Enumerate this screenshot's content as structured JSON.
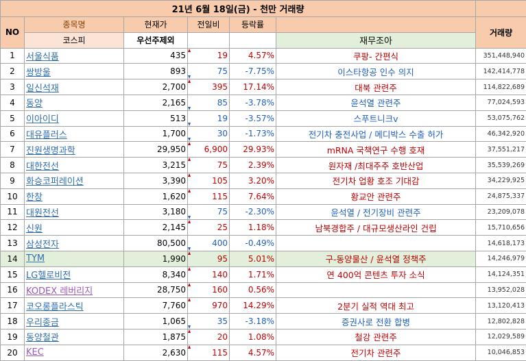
{
  "title": "21년 6월 18일(금) - 천만 거래량",
  "headers": {
    "no": "NO",
    "name": "종목명",
    "price": "현재가",
    "change": "전일비",
    "rate": "등락률",
    "volume": "거래량"
  },
  "subheaders": {
    "market": "코스피",
    "filter": "우선주제외",
    "note": "재무조아"
  },
  "rows": [
    {
      "no": "1",
      "name": "서울식품",
      "price": "435",
      "change": "19",
      "rate": "4.57%",
      "note": "쿠팡- 간편식",
      "volume": "351,448,940",
      "dir": "up"
    },
    {
      "no": "2",
      "name": "쌍방울",
      "price": "893",
      "change": "75",
      "rate": "-7.75%",
      "note": "이스타항공 인수 의지",
      "volume": "142,414,778",
      "dir": "down"
    },
    {
      "no": "3",
      "name": "일신석재",
      "price": "2,700",
      "change": "395",
      "rate": "17.14%",
      "note": "대북 관련주",
      "volume": "114,822,689",
      "dir": "up"
    },
    {
      "no": "4",
      "name": "동양",
      "price": "2,165",
      "change": "85",
      "rate": "-3.78%",
      "note": "윤석열 관련주",
      "volume": "77,024,593",
      "dir": "down"
    },
    {
      "no": "5",
      "name": "이아이디",
      "price": "513",
      "change": "19",
      "rate": "-3.57%",
      "note": "스푸트니크v",
      "volume": "53,075,762",
      "dir": "down"
    },
    {
      "no": "6",
      "name": "대유플러스",
      "price": "1,700",
      "change": "30",
      "rate": "-1.73%",
      "note": "전기차 충전사업 / 메디박스 수출 허가",
      "volume": "46,342,920",
      "dir": "down"
    },
    {
      "no": "7",
      "name": "진원생명과학",
      "price": "29,950",
      "change": "6,900",
      "rate": "29.93%",
      "note": "mRNA 국책연구 수행 호재",
      "volume": "37,551,217",
      "dir": "up"
    },
    {
      "no": "8",
      "name": "대한전선",
      "price": "3,215",
      "change": "75",
      "rate": "2.39%",
      "note": "원자재 /최대주주 호반산업",
      "volume": "35,539,269",
      "dir": "up"
    },
    {
      "no": "9",
      "name": "화승코퍼레이션",
      "price": "3,390",
      "change": "105",
      "rate": "3.20%",
      "note": "전기차 업황 호조 기대감",
      "volume": "34,229,925",
      "dir": "up"
    },
    {
      "no": "10",
      "name": "한창",
      "price": "1,620",
      "change": "115",
      "rate": "7.64%",
      "note": "황교안 관련주",
      "volume": "24,875,337",
      "dir": "up"
    },
    {
      "no": "11",
      "name": "대원전선",
      "price": "3,180",
      "change": "75",
      "rate": "-2.30%",
      "note": "윤석열 / 전기장비 관련주",
      "volume": "23,209,078",
      "dir": "down"
    },
    {
      "no": "12",
      "name": "신원",
      "price": "2,145",
      "change": "25",
      "rate": "1.18%",
      "note": "남북경합주 / 대규모생산라인 건립",
      "volume": "15,710,656",
      "dir": "up"
    },
    {
      "no": "13",
      "name": "삼성전자",
      "price": "80,500",
      "change": "400",
      "rate": "-0.49%",
      "note": "",
      "volume": "14,618,173",
      "dir": "down"
    },
    {
      "no": "14",
      "name": "TYM",
      "price": "1,990",
      "change": "95",
      "rate": "5.01%",
      "note": "구-동양물산 / 윤석열 정책주",
      "volume": "14,246,979",
      "dir": "up",
      "highlight": true
    },
    {
      "no": "15",
      "name": "LG헬로비전",
      "price": "8,340",
      "change": "140",
      "rate": "1.71%",
      "note": "연 400억 콘텐츠 투자 소식",
      "volume": "14,124,351",
      "dir": "up"
    },
    {
      "no": "16",
      "name": "KODEX 레버리지",
      "price": "28,750",
      "change": "160",
      "rate": "0.56%",
      "note": "",
      "volume": "13,952,028",
      "dir": "up",
      "purple": true
    },
    {
      "no": "17",
      "name": "코오롱플라스틱",
      "price": "7,760",
      "change": "970",
      "rate": "14.29%",
      "note": "2분기 실적 역대 최고",
      "volume": "13,120,413",
      "dir": "up"
    },
    {
      "no": "18",
      "name": "우리종금",
      "price": "1,065",
      "change": "35",
      "rate": "-3.18%",
      "note": "증권사로 전환 합병",
      "volume": "12,802,828",
      "dir": "down"
    },
    {
      "no": "19",
      "name": "동양철관",
      "price": "1,875",
      "change": "20",
      "rate": "1.08%",
      "note": "철강 관련주",
      "volume": "12,029,589",
      "dir": "up"
    },
    {
      "no": "20",
      "name": "KEC",
      "price": "2,630",
      "change": "115",
      "rate": "4.57%",
      "note": "전기차 관련주",
      "volume": "10,046,853",
      "dir": "up",
      "purple": true
    }
  ],
  "colors": {
    "header_bg": "#f8cbad",
    "highlight_bg": "#e2efda",
    "up": "#c00000",
    "down": "#1f5fbf",
    "link": "#2f6fb2"
  }
}
